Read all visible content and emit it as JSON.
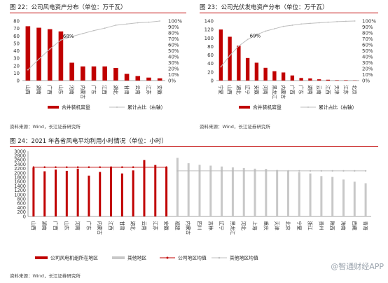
{
  "charts": {
    "c22": {
      "title": "图 22：公司风电资产分布（单位：万千瓦）",
      "source": "资料来源：Wind，长江证券研究所"
    },
    "c23": {
      "title": "图 23：公司光伏发电资产分布（单位：万千瓦）",
      "source": "资料来源：Wind，长江证券研究所"
    },
    "c24": {
      "title": "图 24：2021 年各省风电平均利用小时情况（单位：小时）",
      "source": "资料来源：Wind，长江证券研究所"
    }
  },
  "watermark": "@智通财经APP",
  "colors": {
    "bar_red": "#c00000",
    "line_gray": "#bfbfbf",
    "bar_gray": "#c8c8c8",
    "rule_red": "#c00000"
  },
  "chart_data": [
    {
      "id": "c22",
      "type": "bar",
      "categories": [
        "山西",
        "湖南",
        "广西",
        "山东",
        "河南",
        "内蒙古",
        "广东",
        "江西",
        "湖北",
        "甘肃",
        "云南",
        "江苏",
        "安徽"
      ],
      "series": [
        {
          "name": "合并装机容量",
          "type": "bar",
          "axis": "left",
          "values": [
            73,
            71,
            69,
            66,
            24,
            19,
            19,
            19,
            17,
            9,
            6,
            4,
            3
          ]
        },
        {
          "name": "累计占比（右轴）",
          "type": "line",
          "axis": "right",
          "values": [
            0.18,
            0.36,
            0.53,
            0.68,
            0.74,
            0.79,
            0.84,
            0.88,
            0.93,
            0.95,
            0.97,
            0.98,
            1.0
          ]
        }
      ],
      "ylim": [
        0,
        80
      ],
      "yticks": [
        0,
        10,
        20,
        30,
        40,
        50,
        60,
        70,
        80
      ],
      "y2lim": [
        0,
        1
      ],
      "y2ticks": [
        "0%",
        "10%",
        "20%",
        "30%",
        "40%",
        "50%",
        "60%",
        "70%",
        "80%",
        "90%",
        "100%"
      ],
      "annotation": "68%",
      "annotation_index": 3,
      "legend": [
        "合并装机容量",
        "累计占比（右轴）"
      ],
      "legend_position": "bottom"
    },
    {
      "id": "c23",
      "type": "bar",
      "categories": [
        "宁夏",
        "山西",
        "湖北",
        "辽宁",
        "安徽",
        "河南",
        "黑龙江",
        "内蒙古",
        "广西",
        "广东",
        "湖南",
        "云南",
        "江西",
        "天津",
        "江苏",
        "北京"
      ],
      "series": [
        {
          "name": "合并装机容量",
          "type": "bar",
          "axis": "left",
          "values": [
            120,
            103,
            82,
            53,
            42,
            30,
            22,
            19,
            12,
            6,
            5,
            3,
            2,
            1,
            1,
            0.5
          ]
        },
        {
          "name": "累计占比（右轴）",
          "type": "line",
          "axis": "right",
          "values": [
            0.23,
            0.42,
            0.58,
            0.69,
            0.77,
            0.83,
            0.87,
            0.91,
            0.93,
            0.95,
            0.96,
            0.97,
            0.98,
            0.99,
            0.995,
            1.0
          ]
        }
      ],
      "ylim": [
        0,
        140
      ],
      "yticks": [
        0,
        20,
        40,
        60,
        80,
        100,
        120,
        140
      ],
      "y2lim": [
        0,
        1
      ],
      "y2ticks": [
        "0%",
        "10%",
        "20%",
        "30%",
        "40%",
        "50%",
        "60%",
        "70%",
        "80%",
        "90%",
        "100%"
      ],
      "annotation": "69%",
      "annotation_index": 3,
      "legend": [
        "合并装机容量",
        "累计占比（右轴）"
      ],
      "legend_position": "bottom"
    },
    {
      "id": "c24",
      "type": "bar",
      "categories": [
        "山西",
        "湖南",
        "广西",
        "山东",
        "河南",
        "广东",
        "内蒙古",
        "江西",
        "甘肃",
        "湖北",
        "云南",
        "江苏",
        "安徽",
        "福建",
        "内蒙古",
        "四川",
        "吉林",
        "辽宁",
        "黑龙江",
        "河北",
        "上海",
        "重庆",
        "天津",
        "北京",
        "宁夏",
        "浙江",
        "贵州",
        "陕西",
        "海南",
        "西藏",
        "青海"
      ],
      "series": [
        {
          "name": "公司风电机组所在地区",
          "type": "bar",
          "color": "red",
          "values": [
            2240,
            2080,
            2160,
            2100,
            2200,
            1880,
            2050,
            2280,
            1980,
            2120,
            2600,
            2370,
            2280,
            null,
            null,
            null,
            null,
            null,
            null,
            null,
            null,
            null,
            null,
            null,
            null,
            null,
            null,
            null,
            null,
            null,
            null
          ]
        },
        {
          "name": "其他地区",
          "type": "bar",
          "color": "gray",
          "values": [
            null,
            null,
            null,
            null,
            null,
            null,
            null,
            null,
            null,
            null,
            null,
            null,
            null,
            2700,
            2450,
            2380,
            2340,
            2300,
            2260,
            2230,
            2200,
            2190,
            2140,
            2100,
            2040,
            1980,
            1860,
            1820,
            1700,
            1600,
            1530
          ]
        },
        {
          "name": "公司地区均值",
          "type": "line",
          "color": "red",
          "value": 2270
        },
        {
          "name": "其他地区均值",
          "type": "line",
          "color": "gray",
          "value": 2100
        }
      ],
      "ylim": [
        0,
        3000
      ],
      "yticks": [
        0,
        200,
        400,
        600,
        800,
        1000,
        1200,
        1400,
        1600,
        1800,
        2000,
        2200,
        2400,
        2600,
        2800,
        3000
      ],
      "legend": [
        "公司风电机组所在地区",
        "其他地区",
        "公司地区均值",
        "其他地区均值"
      ],
      "legend_position": "bottom"
    }
  ]
}
